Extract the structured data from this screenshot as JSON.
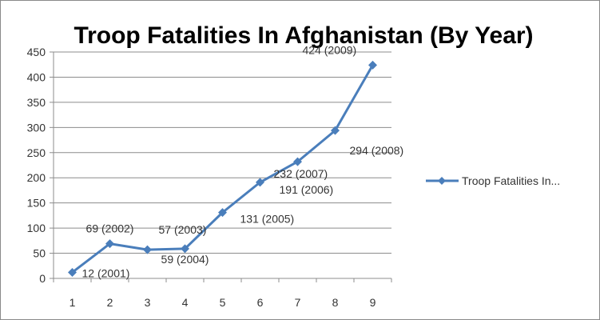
{
  "chart_data": {
    "type": "line",
    "title": "Troop Fatalities In Afghanistan (By Year)",
    "xlabel": "",
    "ylabel": "",
    "x": [
      "1",
      "2",
      "3",
      "4",
      "5",
      "6",
      "7",
      "8",
      "9"
    ],
    "ylim": [
      0,
      450
    ],
    "yticks": [
      0,
      50,
      100,
      150,
      200,
      250,
      300,
      350,
      400,
      450
    ],
    "grid": true,
    "legend": "right",
    "series": [
      {
        "name": "Troop Fatalities In...",
        "color": "#4a7ebb",
        "values": [
          12,
          69,
          57,
          59,
          131,
          191,
          232,
          294,
          424
        ],
        "labels": [
          "12 (2001)",
          "69 (2002)",
          "57 (2003)",
          "59 (2004)",
          "131 (2005)",
          "191 (2006)",
          "232 (2007)",
          "294 (2008)",
          "424 (2009)"
        ]
      }
    ]
  }
}
